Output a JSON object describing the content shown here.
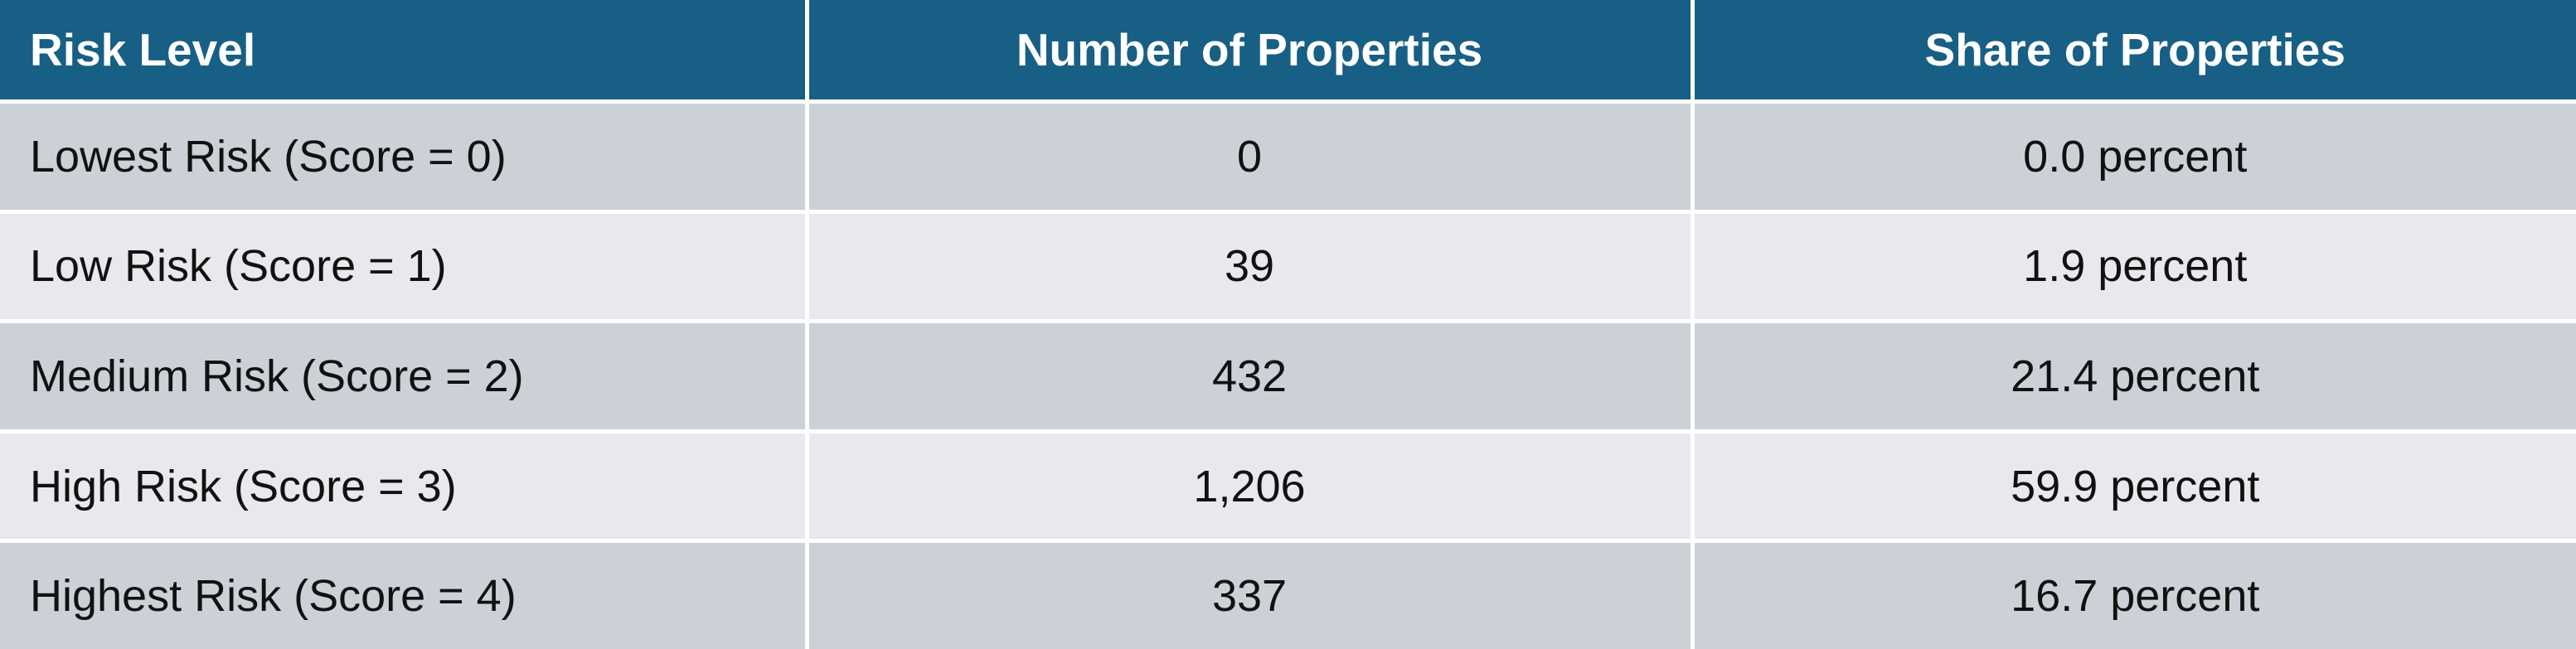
{
  "table": {
    "header": [
      "Risk Level",
      "Number of Properties",
      "Share of Properties"
    ],
    "rows": [
      [
        "Lowest Risk (Score = 0)",
        "0",
        "0.0 percent"
      ],
      [
        "Low Risk (Score = 1)",
        "39",
        "1.9 percent"
      ],
      [
        "Medium Risk (Score = 2)",
        "432",
        "21.4 percent"
      ],
      [
        "High Risk (Score = 3)",
        "1,206",
        "59.9 percent"
      ],
      [
        "Highest Risk (Score = 4)",
        "337",
        "16.7 percent"
      ]
    ]
  }
}
